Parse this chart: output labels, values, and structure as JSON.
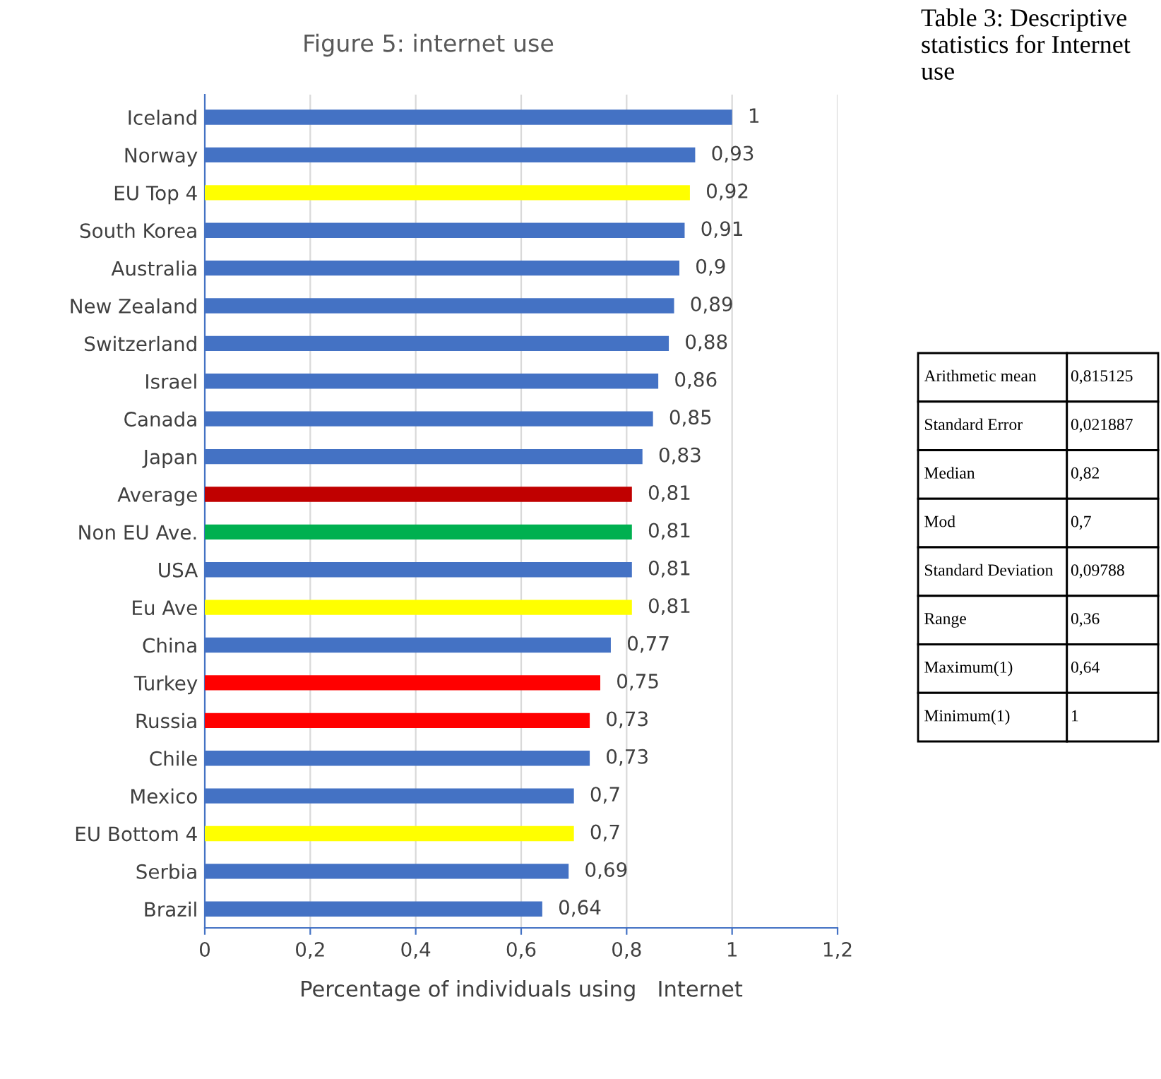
{
  "chart_data": [
    {
      "type": "bar",
      "orientation": "horizontal",
      "title": "Figure 5: internet use",
      "xlabel": "Percentage of individuals using   Internet",
      "categories": [
        "Iceland",
        "Norway",
        "EU Top 4",
        "South Korea",
        "Australia",
        "New Zealand",
        "Switzerland",
        "Israel",
        "Canada",
        "Japan",
        "Average",
        "Non EU Ave.",
        "USA",
        "Eu Ave",
        "China",
        "Turkey",
        "Russia",
        "Chile",
        "Mexico",
        "EU Bottom 4",
        "Serbia",
        "Brazil"
      ],
      "values": [
        1,
        0.93,
        0.92,
        0.91,
        0.9,
        0.89,
        0.88,
        0.86,
        0.85,
        0.83,
        0.81,
        0.81,
        0.81,
        0.81,
        0.77,
        0.75,
        0.73,
        0.73,
        0.7,
        0.7,
        0.69,
        0.64
      ],
      "value_labels": [
        "1",
        "0,93",
        "0,92",
        "0,91",
        "0,9",
        "0,89",
        "0,88",
        "0,86",
        "0,85",
        "0,83",
        "0,81",
        "0,81",
        "0,81",
        "0,81",
        "0,77",
        "0,75",
        "0,73",
        "0,73",
        "0,7",
        "0,7",
        "0,69",
        "0,64"
      ],
      "colors": [
        "#4472c4",
        "#4472c4",
        "#ffff00",
        "#4472c4",
        "#4472c4",
        "#4472c4",
        "#4472c4",
        "#4472c4",
        "#4472c4",
        "#4472c4",
        "#c00000",
        "#00b050",
        "#4472c4",
        "#ffff00",
        "#4472c4",
        "#ff0000",
        "#ff0000",
        "#4472c4",
        "#4472c4",
        "#ffff00",
        "#4472c4",
        "#4472c4"
      ],
      "xlim": [
        0,
        1.2
      ],
      "xticks": [
        0,
        {
          "value": 0.2,
          "label": "0,2"
        },
        {
          "value": 0.4,
          "label": "0,4"
        },
        {
          "value": 0.6,
          "label": "0,6"
        },
        {
          "value": 0.8,
          "label": "0,8"
        },
        1,
        {
          "value": 1.2,
          "label": "1,2"
        }
      ],
      "grid": "x",
      "legend": false
    },
    {
      "type": "other",
      "title": "Table 3: Descriptive statistics for Internet use",
      "annotations": [
        "Arithmetic mean",
        "0,815125",
        "Standard Error",
        "0,021887",
        "Median",
        "0,82",
        "Mod",
        "0,7",
        "Standard Deviation",
        "0,09788",
        "Range",
        "0,36",
        "Maximum(1)",
        "0,64",
        "Minimum(1)",
        "1"
      ]
    }
  ]
}
